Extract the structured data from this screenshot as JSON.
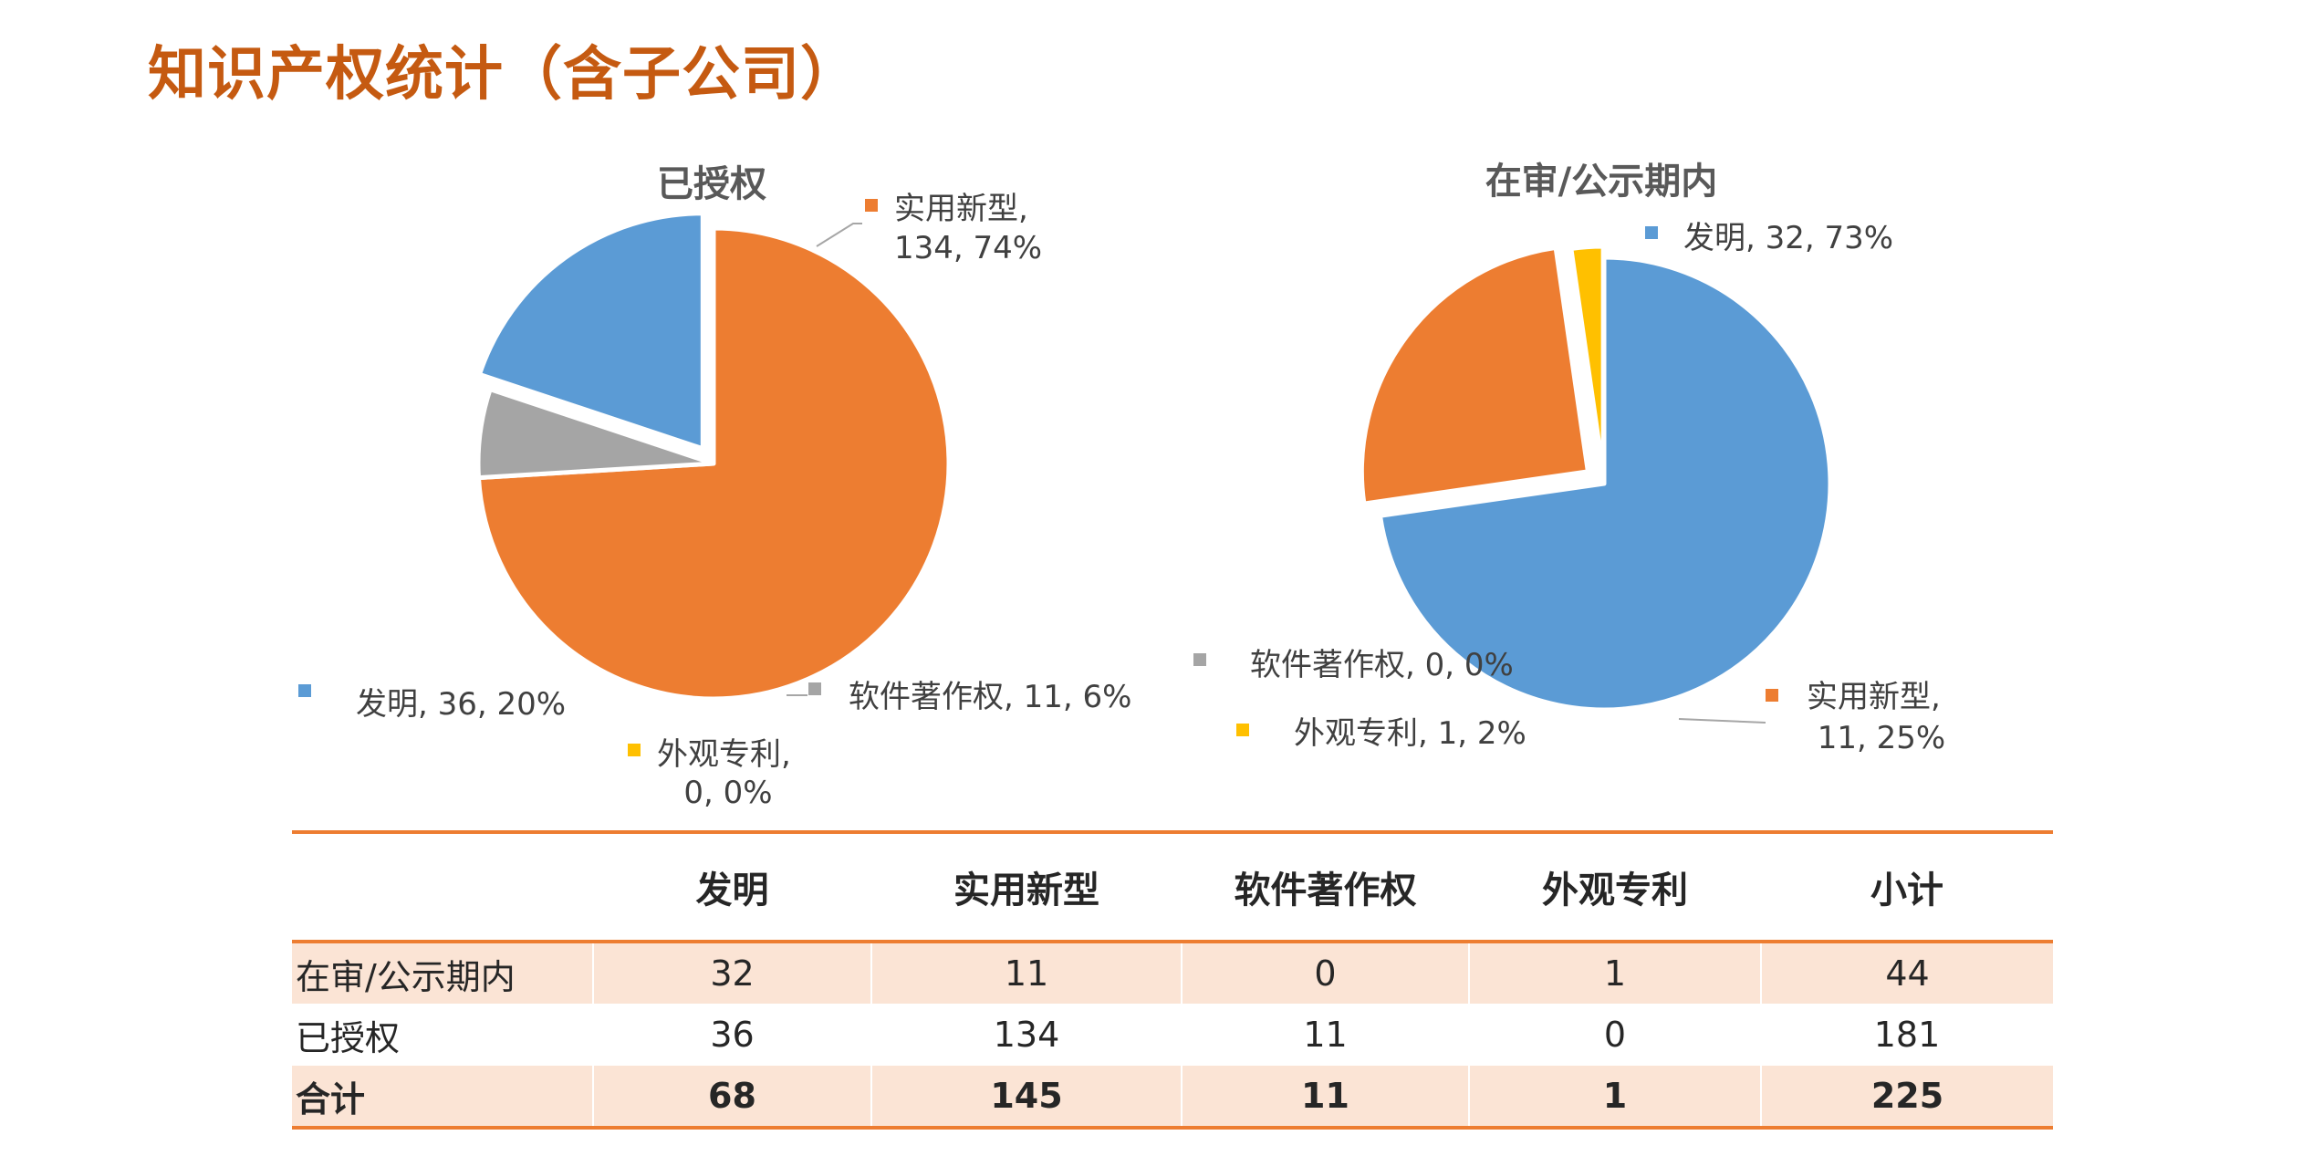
{
  "page": {
    "title": "知识产权统计（含子公司）"
  },
  "colors": {
    "invention": "#5b9bd5",
    "utility": "#ed7d31",
    "software": "#a5a5a5",
    "design": "#ffc000",
    "title": "#c55a11",
    "accent": "#ed7d31",
    "shade": "#fbe4d5"
  },
  "chart_data": [
    {
      "type": "pie",
      "title": "已授权",
      "slices": [
        {
          "name": "实用新型",
          "value": 134,
          "percent": 74,
          "label_line1": "实用新型,",
          "label_line2": "134, 74%",
          "color": "#ed7d31"
        },
        {
          "name": "软件著作权",
          "value": 11,
          "percent": 6,
          "label_line1": "软件著作权, 11, 6%",
          "label_line2": "",
          "color": "#a5a5a5"
        },
        {
          "name": "外观专利",
          "value": 0,
          "percent": 0,
          "label_line1": "外观专利,",
          "label_line2": "0, 0%",
          "color": "#ffc000"
        },
        {
          "name": "发明",
          "value": 36,
          "percent": 20,
          "label_line1": "发明, 36, 20%",
          "label_line2": "",
          "color": "#5b9bd5"
        }
      ]
    },
    {
      "type": "pie",
      "title": "在审/公示期内",
      "slices": [
        {
          "name": "发明",
          "value": 32,
          "percent": 73,
          "label_line1": "发明, 32, 73%",
          "label_line2": "",
          "color": "#5b9bd5"
        },
        {
          "name": "实用新型",
          "value": 11,
          "percent": 25,
          "label_line1": "实用新型,",
          "label_line2": "11, 25%",
          "color": "#ed7d31"
        },
        {
          "name": "外观专利",
          "value": 1,
          "percent": 2,
          "label_line1": "外观专利, 1, 2%",
          "label_line2": "",
          "color": "#ffc000"
        },
        {
          "name": "软件著作权",
          "value": 0,
          "percent": 0,
          "label_line1": "软件著作权, 0, 0%",
          "label_line2": "",
          "color": "#a5a5a5"
        }
      ]
    }
  ],
  "table": {
    "headers": [
      "",
      "发明",
      "实用新型",
      "软件著作权",
      "外观专利",
      "小计"
    ],
    "rows": [
      {
        "label": "在审/公示期内",
        "values": [
          "32",
          "11",
          "0",
          "1",
          "44"
        ]
      },
      {
        "label": "已授权",
        "values": [
          "36",
          "134",
          "11",
          "0",
          "181"
        ]
      },
      {
        "label": "合计",
        "values": [
          "68",
          "145",
          "11",
          "1",
          "225"
        ]
      }
    ]
  }
}
